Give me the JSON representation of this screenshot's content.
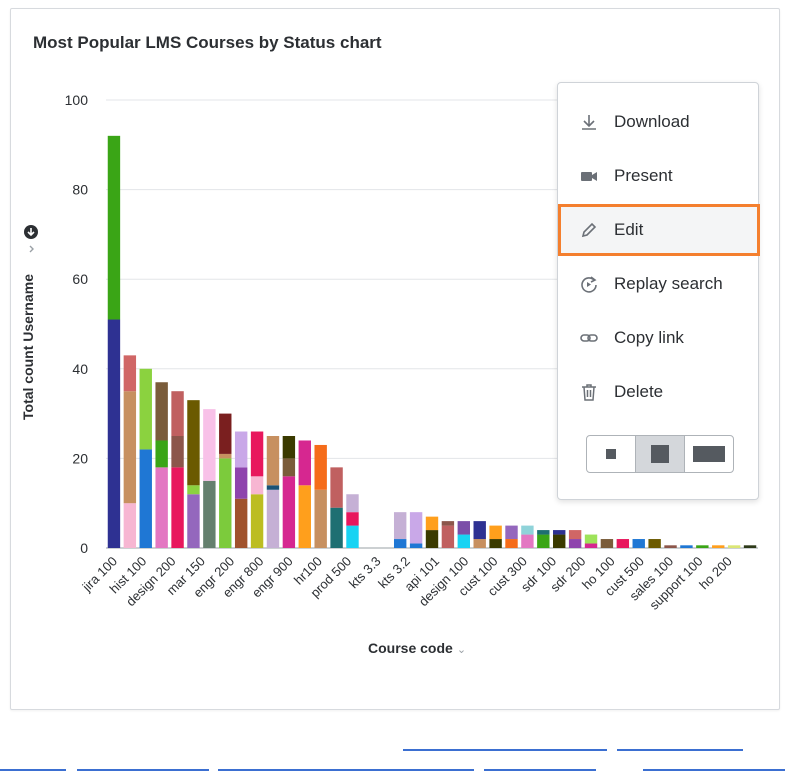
{
  "card": {
    "title": "Most Popular LMS Courses by Status chart",
    "ylabel": "Total count Username",
    "xlabel": "Course code"
  },
  "menu": {
    "items": [
      {
        "label": "Download",
        "icon": "download-icon"
      },
      {
        "label": "Present",
        "icon": "present-icon"
      },
      {
        "label": "Edit",
        "icon": "edit-icon",
        "selected": true
      },
      {
        "label": "Replay search",
        "icon": "replay-icon"
      },
      {
        "label": "Copy link",
        "icon": "link-icon"
      },
      {
        "label": "Delete",
        "icon": "delete-icon"
      }
    ],
    "size_options": [
      "small",
      "medium",
      "large"
    ],
    "size_selected": "medium"
  },
  "colors": {
    "accent_outline": "#f47f2e",
    "link": "#3b6fd1"
  },
  "chart_data": {
    "type": "bar",
    "stacked": true,
    "title": "Most Popular LMS Courses by Status chart",
    "xlabel": "Course code",
    "ylabel": "Total count Username",
    "ylim": [
      0,
      100
    ],
    "yticks": [
      0,
      20,
      40,
      60,
      80,
      100
    ],
    "grid": true,
    "x_tick_labels": [
      "jira 100",
      "hist 100",
      "design 200",
      "mar 150",
      "engr 200",
      "engr 800",
      "engr 900",
      "hr100",
      "prod 500",
      "kts 3.3",
      "kts 3.2",
      "api 101",
      "design 100",
      "cust 100",
      "cust 300",
      "sdr 100",
      "sdr 200",
      "ho 100",
      "cust 500",
      "sales 100",
      "support 100",
      "ho 200"
    ],
    "bars": [
      {
        "segments": [
          [
            51,
            "#2e3192"
          ],
          [
            41,
            "#3aa516"
          ]
        ]
      },
      {
        "segments": [
          [
            10,
            "#f7b6d2"
          ],
          [
            25,
            "#c79060"
          ],
          [
            8,
            "#d06666"
          ]
        ]
      },
      {
        "segments": [
          [
            22,
            "#1f77d4"
          ],
          [
            18,
            "#8bd23f"
          ]
        ]
      },
      {
        "segments": [
          [
            18,
            "#e377c2"
          ],
          [
            6,
            "#3aa516"
          ],
          [
            13,
            "#7a5c3a"
          ]
        ]
      },
      {
        "segments": [
          [
            18,
            "#e8175d"
          ],
          [
            7,
            "#8c564b"
          ],
          [
            10,
            "#c06060"
          ]
        ]
      },
      {
        "segments": [
          [
            12,
            "#9467bd"
          ],
          [
            2,
            "#8bd23f"
          ],
          [
            19,
            "#6b5a00"
          ]
        ]
      },
      {
        "segments": [
          [
            15,
            "#64806e"
          ],
          [
            16,
            "#f8c1e8"
          ]
        ]
      },
      {
        "segments": [
          [
            20,
            "#7ccb3c"
          ],
          [
            1,
            "#c79060"
          ],
          [
            9,
            "#7a1f1f"
          ]
        ]
      },
      {
        "segments": [
          [
            11,
            "#a0522d"
          ],
          [
            7,
            "#8e44ad"
          ],
          [
            8,
            "#c9a8e8"
          ]
        ]
      },
      {
        "segments": [
          [
            12,
            "#bcbd22"
          ],
          [
            4,
            "#f7b6d2"
          ],
          [
            10,
            "#e8175d"
          ]
        ]
      },
      {
        "segments": [
          [
            13,
            "#c5b0d5"
          ],
          [
            1,
            "#1a5276"
          ],
          [
            11,
            "#c79060"
          ]
        ]
      },
      {
        "segments": [
          [
            16,
            "#d62790"
          ],
          [
            4,
            "#7a5c3a"
          ],
          [
            5,
            "#3a3a00"
          ]
        ]
      },
      {
        "segments": [
          [
            14,
            "#ff9f1c"
          ],
          [
            10,
            "#d62790"
          ]
        ]
      },
      {
        "segments": [
          [
            13,
            "#c79060"
          ],
          [
            10,
            "#f56c1a"
          ]
        ]
      },
      {
        "segments": [
          [
            9,
            "#1e6f72"
          ],
          [
            9,
            "#c06060"
          ]
        ]
      },
      {
        "segments": [
          [
            5,
            "#19d3f3"
          ],
          [
            3,
            "#e8175d"
          ],
          [
            4,
            "#c5b0d5"
          ]
        ]
      },
      {
        "segments": []
      },
      {
        "segments": []
      },
      {
        "segments": [
          [
            2,
            "#1f77d4"
          ],
          [
            6,
            "#c5b0d5"
          ]
        ]
      },
      {
        "segments": [
          [
            1,
            "#1f77d4"
          ],
          [
            7,
            "#c9a8e8"
          ]
        ]
      },
      {
        "segments": [
          [
            4,
            "#3a3a00"
          ],
          [
            3,
            "#ff9f1c"
          ]
        ]
      },
      {
        "segments": [
          [
            5,
            "#c06060"
          ],
          [
            1,
            "#8c564b"
          ]
        ]
      },
      {
        "segments": [
          [
            3,
            "#19d3f3"
          ],
          [
            3,
            "#7b4ea8"
          ]
        ]
      },
      {
        "segments": [
          [
            2,
            "#c79060"
          ],
          [
            4,
            "#2e3192"
          ]
        ]
      },
      {
        "segments": [
          [
            2,
            "#3a3a00"
          ],
          [
            3,
            "#ff9f1c"
          ]
        ]
      },
      {
        "segments": [
          [
            2,
            "#f56c1a"
          ],
          [
            3,
            "#9467bd"
          ]
        ]
      },
      {
        "segments": [
          [
            3,
            "#e377c2"
          ],
          [
            2,
            "#8fd3d9"
          ]
        ]
      },
      {
        "segments": [
          [
            3,
            "#3aa516"
          ],
          [
            1,
            "#1e6f72"
          ]
        ]
      },
      {
        "segments": [
          [
            3,
            "#3a3a00"
          ],
          [
            1,
            "#2e3192"
          ]
        ]
      },
      {
        "segments": [
          [
            2,
            "#8e44ad"
          ],
          [
            2,
            "#d06666"
          ]
        ]
      },
      {
        "segments": [
          [
            1,
            "#d62790"
          ],
          [
            2,
            "#9ee35a"
          ]
        ]
      },
      {
        "segments": [
          [
            2,
            "#7a5c3a"
          ]
        ]
      },
      {
        "segments": [
          [
            2,
            "#e8175d"
          ]
        ]
      },
      {
        "segments": [
          [
            2,
            "#1f77d4"
          ]
        ]
      },
      {
        "segments": [
          [
            2,
            "#6b5a00"
          ]
        ]
      },
      {
        "segments": [
          [
            0.6,
            "#8c564b"
          ]
        ]
      },
      {
        "segments": [
          [
            0.6,
            "#1f77d4"
          ]
        ]
      },
      {
        "segments": [
          [
            0.6,
            "#3aa516"
          ]
        ]
      },
      {
        "segments": [
          [
            0.6,
            "#ff9f1c"
          ]
        ]
      },
      {
        "segments": [
          [
            0.6,
            "#dbe675"
          ]
        ]
      },
      {
        "segments": [
          [
            0.6,
            "#2e3a1a"
          ]
        ]
      }
    ]
  }
}
